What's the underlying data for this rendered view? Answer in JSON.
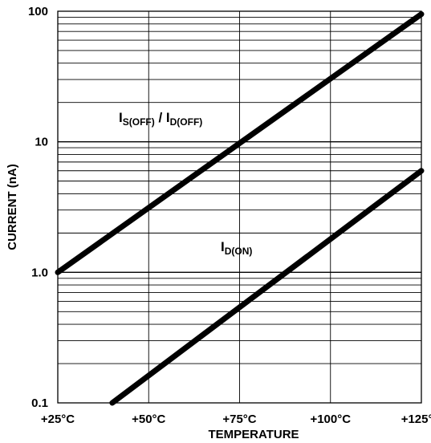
{
  "chart_data": {
    "type": "line",
    "title": "",
    "xlabel": "TEMPERATURE",
    "ylabel": "CURRENT (nA)",
    "x_ticks": [
      {
        "value": 25,
        "label": "+25°C"
      },
      {
        "value": 50,
        "label": "+50°C"
      },
      {
        "value": 75,
        "label": "+75°C"
      },
      {
        "value": 100,
        "label": "+100°C"
      },
      {
        "value": 125,
        "label": "+125°C"
      }
    ],
    "y_ticks": [
      {
        "value": 0.1,
        "label": "0.1"
      },
      {
        "value": 1,
        "label": "1.0"
      },
      {
        "value": 10,
        "label": "10"
      },
      {
        "value": 100,
        "label": "100"
      }
    ],
    "xlim": [
      25,
      125
    ],
    "ylim": [
      0.1,
      100
    ],
    "y_scale": "log",
    "grid": true,
    "legend": "none",
    "series": [
      {
        "label_main": "I",
        "label_sub": "S(OFF)",
        "label_sep": " / I",
        "label_sub2": "D(OFF)",
        "x": [
          25,
          125
        ],
        "y": [
          1.0,
          95
        ]
      },
      {
        "label_main": "I",
        "label_sub": "D(ON)",
        "label_sep": "",
        "label_sub2": "",
        "x": [
          40,
          125
        ],
        "y": [
          0.1,
          6.0
        ]
      }
    ],
    "colors": {
      "line": "#000000",
      "grid": "#000000",
      "background": "#ffffff"
    }
  }
}
